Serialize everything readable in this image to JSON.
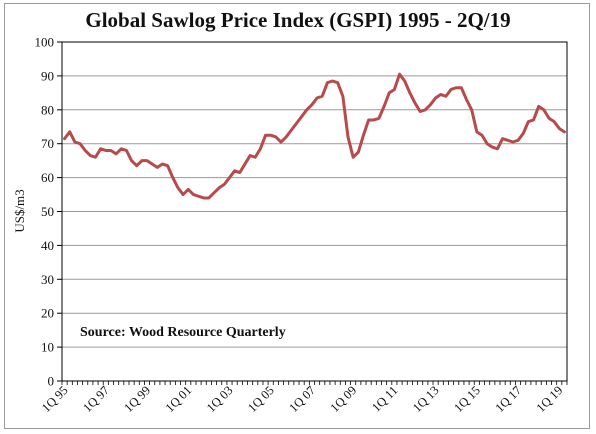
{
  "chart_data": {
    "type": "line",
    "title": "Global Sawlog Price Index (GSPI) 1995 - 2Q/19",
    "ylabel": "US$/m3",
    "xlabel": "",
    "ylim": [
      0,
      100
    ],
    "yticks": [
      0,
      10,
      20,
      30,
      40,
      50,
      60,
      70,
      80,
      90,
      100
    ],
    "xtick_labels": [
      "1Q 95",
      "1Q 97",
      "1Q 99",
      "1Q 01",
      "1Q 03",
      "1Q 05",
      "1Q 07",
      "1Q 09",
      "1Q 11",
      "1Q 13",
      "1Q 15",
      "1Q 17",
      "1Q 19"
    ],
    "annotation": "Source: Wood Resource Quarterly",
    "grid": true,
    "legend": "none",
    "line_color": "#B84A4A",
    "series": [
      {
        "values": [
          71.5,
          73.5,
          70.5,
          70,
          68,
          66.5,
          66,
          68.5,
          68,
          68,
          67,
          68.5,
          68,
          65,
          63.5,
          65,
          65,
          64,
          63,
          64,
          63.5,
          60,
          57,
          55,
          56.5,
          55,
          54.5,
          54,
          54,
          55.5,
          57,
          58,
          60,
          62,
          61.5,
          64,
          66.5,
          66,
          68.5,
          72.5,
          72.5,
          72,
          70.5,
          72,
          74,
          76,
          78,
          80,
          81.5,
          83.5,
          84,
          88,
          88.5,
          88,
          84,
          72,
          66,
          67.5,
          72.5,
          77,
          77,
          77.5,
          81,
          85,
          86,
          90.5,
          88.5,
          85,
          82,
          79.5,
          80,
          81.5,
          83.5,
          84.5,
          84,
          86,
          86.5,
          86.5,
          83,
          80,
          73.5,
          72.5,
          70,
          69,
          68.5,
          71.5,
          71,
          70.5,
          71,
          73,
          76.5,
          77,
          81,
          80,
          77.5,
          76.5,
          74.5,
          73.5
        ]
      }
    ]
  }
}
